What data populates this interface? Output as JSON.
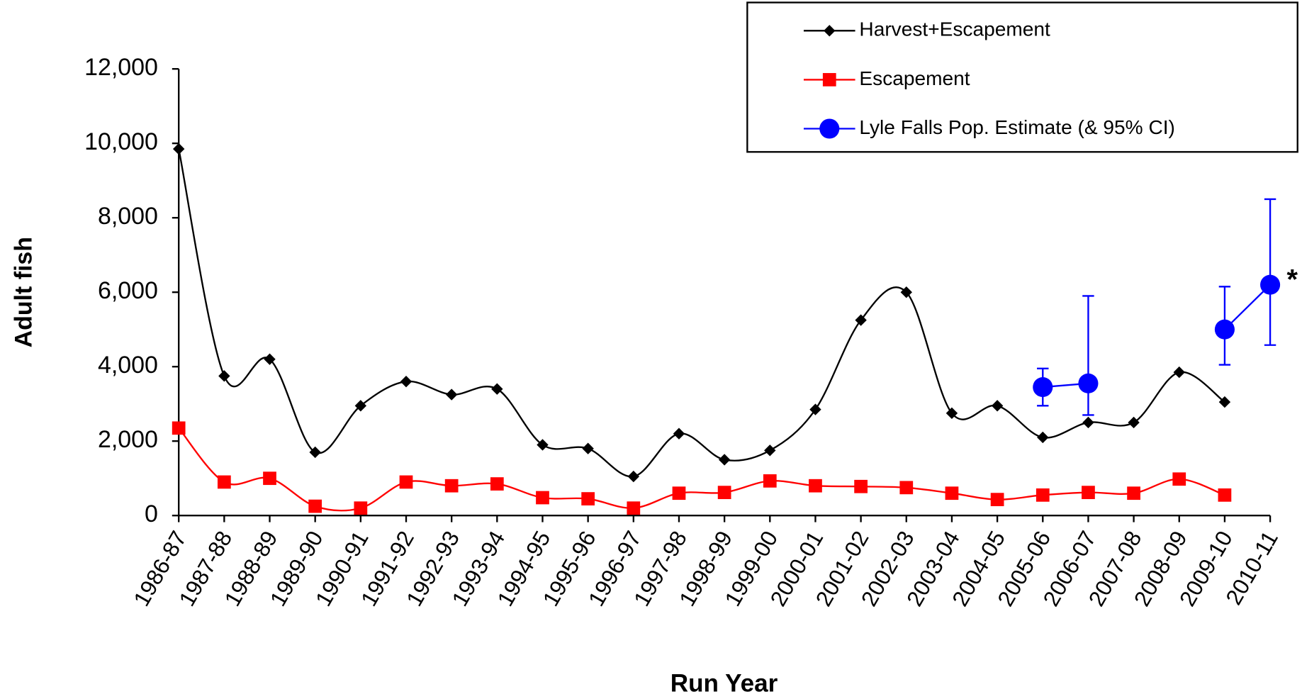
{
  "chart_data": {
    "type": "line",
    "y_label": "Adult fish",
    "x_label": "Run Year",
    "annotation": "*",
    "categories": [
      "1986-87",
      "1987-88",
      "1988-89",
      "1989-90",
      "1990-91",
      "1991-92",
      "1992-93",
      "1993-94",
      "1994-95",
      "1995-96",
      "1996-97",
      "1997-98",
      "1998-99",
      "1999-00",
      "2000-01",
      "2001-02",
      "2002-03",
      "2003-04",
      "2004-05",
      "2005-06",
      "2006-07",
      "2007-08",
      "2008-09",
      "2009-10",
      "2010-11"
    ],
    "series": [
      {
        "name": "Harvest+Escapement",
        "color": "#000000",
        "marker": "diamond",
        "smooth": true,
        "values": [
          9850,
          3750,
          4200,
          1700,
          2950,
          3600,
          3250,
          3400,
          1900,
          1800,
          1050,
          2200,
          1500,
          1750,
          2850,
          5250,
          6000,
          2750,
          2950,
          2100,
          2500,
          2500,
          3850,
          3050,
          null
        ]
      },
      {
        "name": "Escapement",
        "color": "#ff0000",
        "marker": "square",
        "smooth": true,
        "values": [
          2350,
          900,
          1000,
          250,
          200,
          900,
          800,
          850,
          480,
          450,
          200,
          600,
          620,
          930,
          800,
          780,
          750,
          600,
          430,
          550,
          620,
          600,
          980,
          550,
          null
        ]
      },
      {
        "name": "Lyle Falls Pop. Estimate (& 95% CI)",
        "color": "#0000ff",
        "marker": "circle",
        "smooth": false,
        "values": [
          null,
          null,
          null,
          null,
          null,
          null,
          null,
          null,
          null,
          null,
          null,
          null,
          null,
          null,
          null,
          null,
          null,
          null,
          null,
          3450,
          3550,
          null,
          null,
          5000,
          6200
        ],
        "ci_low": [
          null,
          null,
          null,
          null,
          null,
          null,
          null,
          null,
          null,
          null,
          null,
          null,
          null,
          null,
          null,
          null,
          null,
          null,
          null,
          2950,
          2700,
          null,
          null,
          4050,
          4580
        ],
        "ci_high": [
          null,
          null,
          null,
          null,
          null,
          null,
          null,
          null,
          null,
          null,
          null,
          null,
          null,
          null,
          null,
          null,
          null,
          null,
          null,
          3950,
          5900,
          null,
          null,
          6150,
          8500
        ]
      }
    ],
    "ylim": [
      0,
      12000
    ],
    "yticks": [
      0,
      {
        "value": 2000,
        "label": "2,000"
      },
      {
        "value": 4000,
        "label": "4,000"
      },
      {
        "value": 6000,
        "label": "6,000"
      },
      {
        "value": 8000,
        "label": "8,000"
      },
      {
        "value": 10000,
        "label": "10,000"
      },
      {
        "value": 12000,
        "label": "12,000"
      }
    ],
    "legend": "top-right",
    "grid": false
  }
}
